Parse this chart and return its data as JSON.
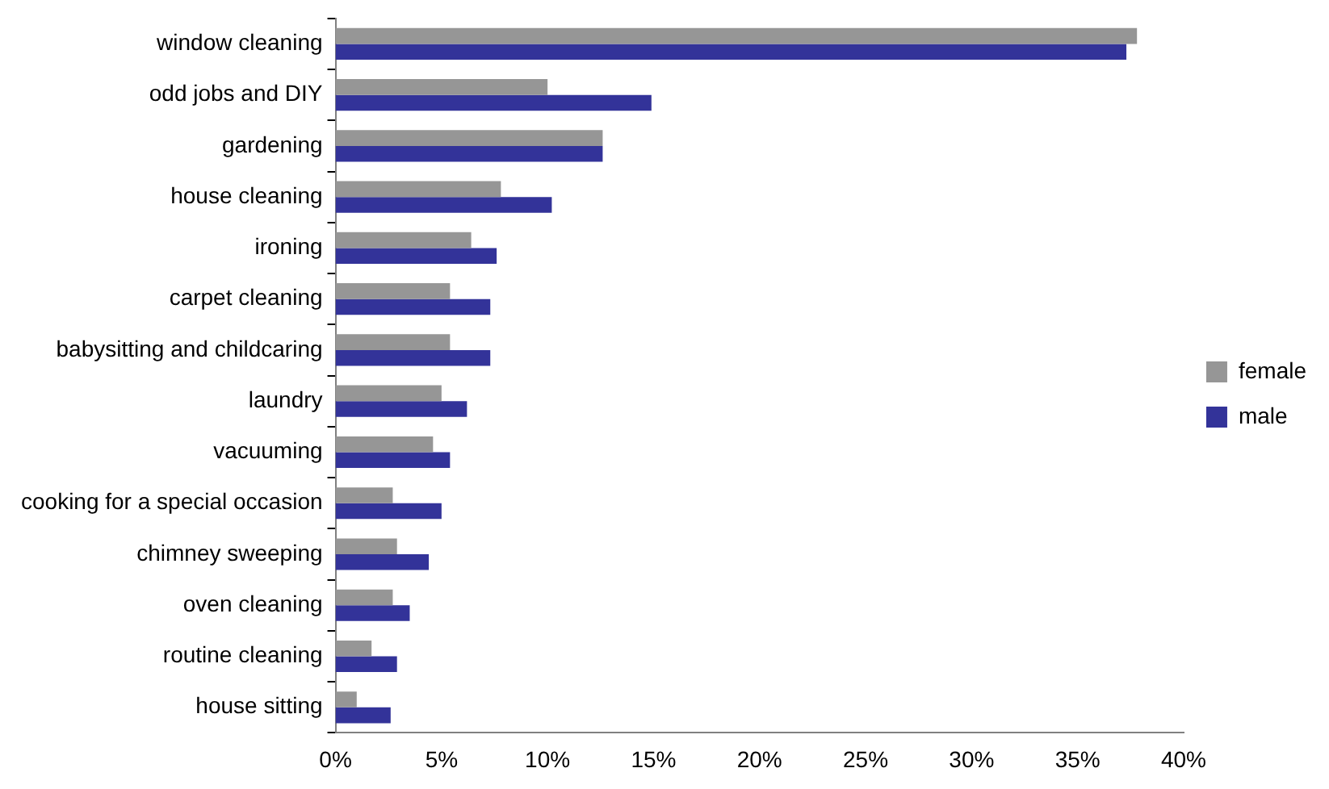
{
  "chart_data": {
    "type": "bar",
    "orientation": "horizontal",
    "categories": [
      "window cleaning",
      "odd jobs and DIY",
      "gardening",
      "house cleaning",
      "ironing",
      "carpet cleaning",
      "babysitting and childcaring",
      "laundry",
      "vacuuming",
      "cooking for a special occasion",
      "chimney sweeping",
      "oven cleaning",
      "routine cleaning",
      "house sitting"
    ],
    "series": [
      {
        "name": "female",
        "color": "#969696",
        "values": [
          37.8,
          10.0,
          12.6,
          7.8,
          6.4,
          5.4,
          5.4,
          5.0,
          4.6,
          2.7,
          2.9,
          2.7,
          1.7,
          1.0
        ]
      },
      {
        "name": "male",
        "color": "#333399",
        "values": [
          37.3,
          14.9,
          12.6,
          10.2,
          7.6,
          7.3,
          7.3,
          6.2,
          5.4,
          5.0,
          4.4,
          3.5,
          2.9,
          2.6
        ]
      }
    ],
    "xlim": [
      0,
      40
    ],
    "xticks": [
      {
        "value": 0,
        "label": "0%"
      },
      {
        "value": 5,
        "label": "5%"
      },
      {
        "value": 10,
        "label": "10%"
      },
      {
        "value": 15,
        "label": "15%"
      },
      {
        "value": 20,
        "label": "20%"
      },
      {
        "value": 25,
        "label": "25%"
      },
      {
        "value": 30,
        "label": "30%"
      },
      {
        "value": 35,
        "label": "35%"
      },
      {
        "value": 40,
        "label": "40%"
      }
    ],
    "grid": false,
    "legend": "right"
  }
}
